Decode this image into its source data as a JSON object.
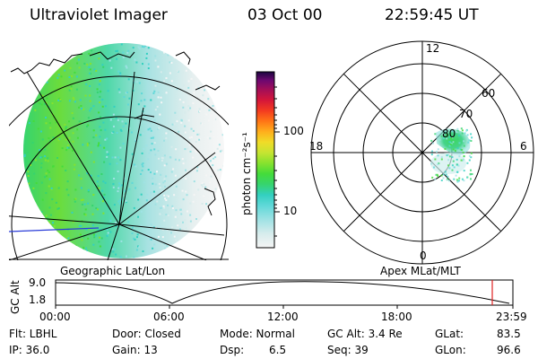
{
  "header": {
    "instrument": "Ultraviolet Imager",
    "date": "03 Oct 00",
    "time": "22:59:45 UT"
  },
  "colorbar": {
    "unit_label": "photon cm⁻²s⁻¹",
    "ticks": [
      "100",
      "10"
    ],
    "colors": [
      "#f5f5f5",
      "#d7ecec",
      "#9fe2e4",
      "#5fd8d8",
      "#33d0c0",
      "#36d46e",
      "#44dc3a",
      "#86e22e",
      "#c6e432",
      "#f0dc28",
      "#ffae1c",
      "#ff7416",
      "#f33a20",
      "#d4163a",
      "#a20e58",
      "#6e0870",
      "#3c0572",
      "#1a0540"
    ]
  },
  "geo_panel": {
    "caption": "Geographic Lat/Lon"
  },
  "polar_panel": {
    "caption": "Apex MLat/MLT",
    "hour_labels": {
      "top": "12",
      "left": "18",
      "right": "6",
      "bottom": "0"
    },
    "lat_labels": [
      "60",
      "70",
      "80"
    ]
  },
  "altitude_strip": {
    "ylabel": "GC Alt",
    "y_ticks": [
      "9.0",
      "1.8"
    ],
    "x_ticks": [
      "00:00",
      "06:00",
      "12:00",
      "18:00",
      "23:59"
    ],
    "current_time_marker_color": "#e02020"
  },
  "status": {
    "flt": "Flt: LBHL",
    "ip": "IP: 36.0",
    "door": "Door: Closed",
    "gain": "Gain: 13",
    "mode": "Mode: Normal",
    "dsp_label": "Dsp:",
    "dsp_value": "6.5",
    "gc_alt": "GC Alt: 3.4 Re",
    "seq": "Seq: 39",
    "glat_label": "GLat:",
    "glat_value": "83.5",
    "glon_label": "GLon:",
    "glon_value": "96.6"
  }
}
